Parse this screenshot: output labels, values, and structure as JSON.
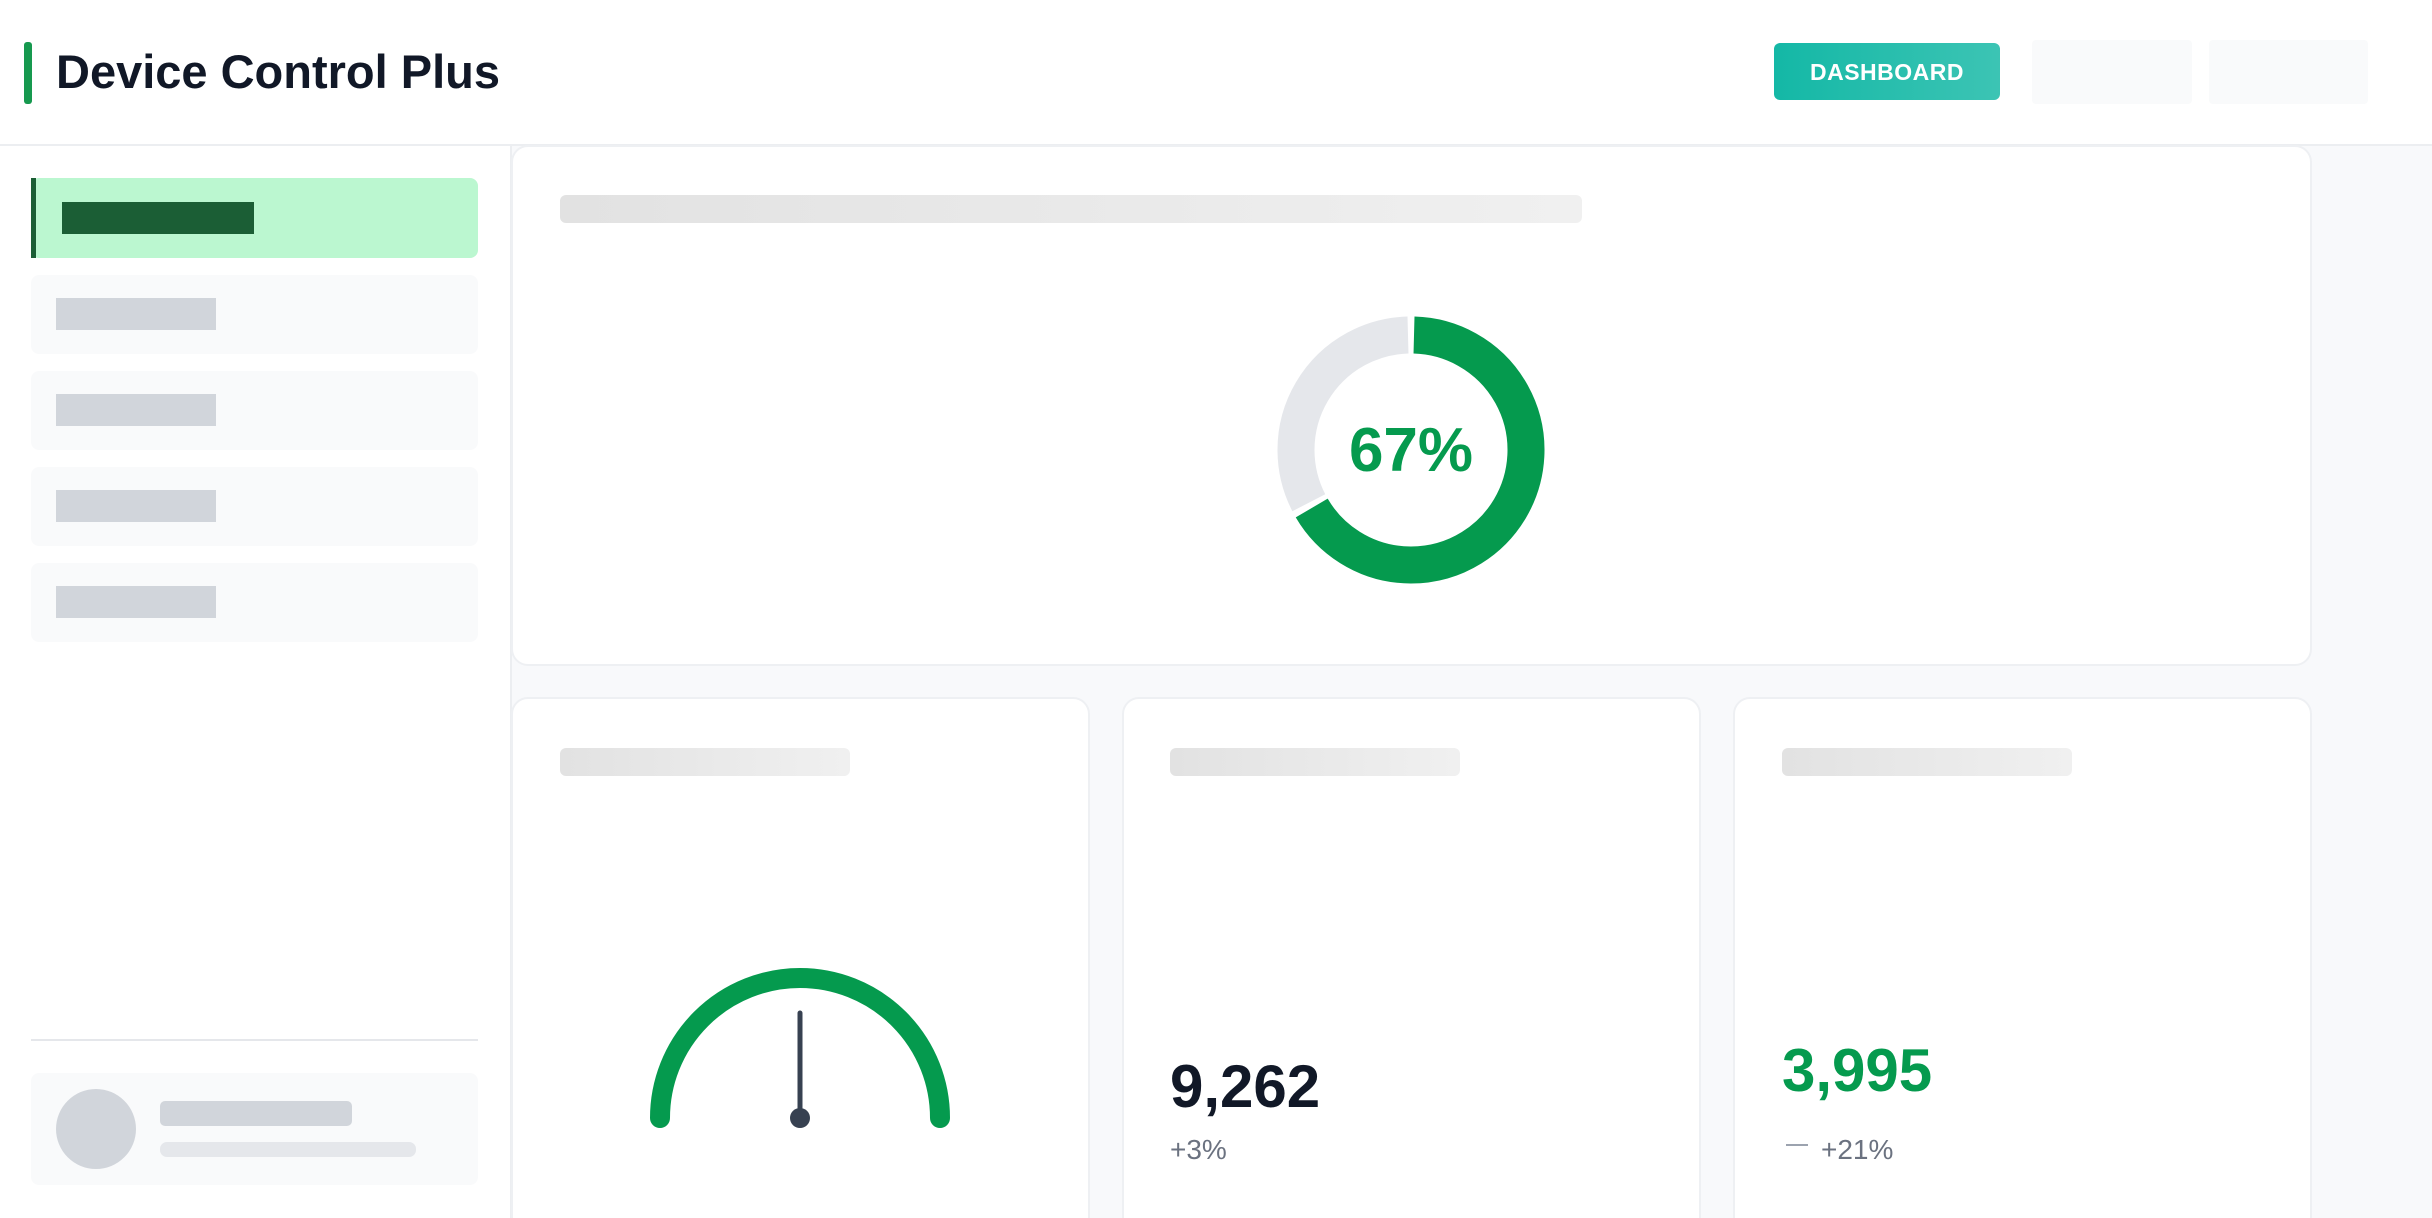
{
  "header": {
    "title": "Device Control Plus",
    "button": "DASHBOARD"
  },
  "donut": {
    "value": 67,
    "label": "67%"
  },
  "stats": [
    {
      "value": "9,262",
      "change": "+3%"
    },
    {
      "value": "3,995",
      "change": "+21%"
    }
  ]
}
